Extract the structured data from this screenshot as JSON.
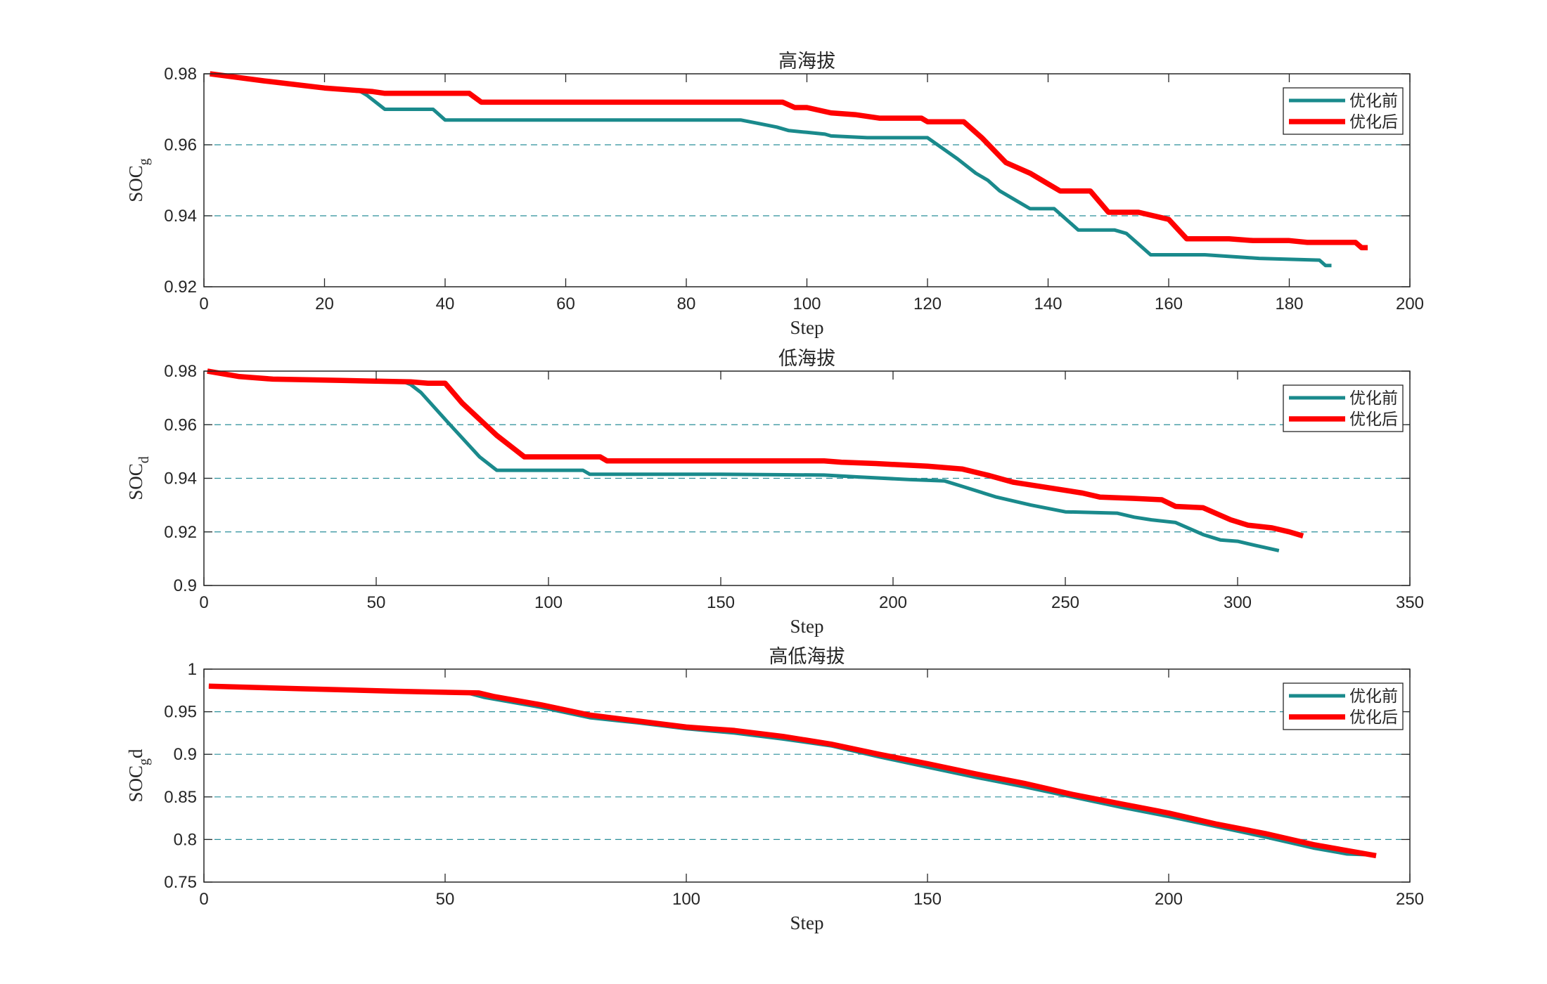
{
  "chart_data": [
    {
      "type": "line",
      "title": "高海拔",
      "xlabel": "Step",
      "ylabel": "SOC",
      "ylabel_sub": "g",
      "xlim": [
        0,
        200
      ],
      "ylim": [
        0.92,
        0.98
      ],
      "xticks": [
        0,
        20,
        40,
        60,
        80,
        100,
        120,
        140,
        160,
        180,
        200
      ],
      "yticks": [
        0.92,
        0.94,
        0.96,
        0.98
      ],
      "xtick_labels": [
        "0",
        "20",
        "40",
        "60",
        "80",
        "100",
        "120",
        "140",
        "160",
        "180",
        "200"
      ],
      "ytick_labels": [
        "0.92",
        "0.94",
        "0.96",
        "0.98"
      ],
      "grid": "horizontal-dashed",
      "legend_position": "top-right",
      "series": [
        {
          "name": "优化前",
          "color": "#1a8a8c",
          "points": [
            [
              1,
              0.98
            ],
            [
              10,
              0.978
            ],
            [
              20,
              0.976
            ],
            [
              26,
              0.975
            ],
            [
              27,
              0.974
            ],
            [
              30,
              0.97
            ],
            [
              38,
              0.97
            ],
            [
              40,
              0.967
            ],
            [
              50,
              0.967
            ],
            [
              70,
              0.967
            ],
            [
              89,
              0.967
            ],
            [
              92,
              0.966
            ],
            [
              95,
              0.965
            ],
            [
              97,
              0.964
            ],
            [
              100,
              0.9635
            ],
            [
              103,
              0.963
            ],
            [
              104,
              0.9625
            ],
            [
              110,
              0.962
            ],
            [
              120,
              0.962
            ],
            [
              125,
              0.956
            ],
            [
              128,
              0.952
            ],
            [
              130,
              0.95
            ],
            [
              132,
              0.947
            ],
            [
              135,
              0.944
            ],
            [
              137,
              0.942
            ],
            [
              141,
              0.942
            ],
            [
              145,
              0.936
            ],
            [
              151,
              0.936
            ],
            [
              153,
              0.935
            ],
            [
              157,
              0.929
            ],
            [
              166,
              0.929
            ],
            [
              175,
              0.928
            ],
            [
              185,
              0.9275
            ],
            [
              186,
              0.926
            ],
            [
              187,
              0.926
            ]
          ]
        },
        {
          "name": "优化后",
          "color": "#ff0000",
          "points": [
            [
              1,
              0.98
            ],
            [
              10,
              0.978
            ],
            [
              20,
              0.976
            ],
            [
              28,
              0.975
            ],
            [
              30,
              0.9745
            ],
            [
              38,
              0.9745
            ],
            [
              44,
              0.9745
            ],
            [
              46,
              0.972
            ],
            [
              60,
              0.972
            ],
            [
              80,
              0.972
            ],
            [
              96,
              0.972
            ],
            [
              98,
              0.9705
            ],
            [
              100,
              0.9705
            ],
            [
              104,
              0.969
            ],
            [
              108,
              0.9685
            ],
            [
              112,
              0.9675
            ],
            [
              119,
              0.9675
            ],
            [
              120,
              0.9665
            ],
            [
              126,
              0.9665
            ],
            [
              129,
              0.962
            ],
            [
              133,
              0.955
            ],
            [
              137,
              0.952
            ],
            [
              140,
              0.949
            ],
            [
              142,
              0.947
            ],
            [
              147,
              0.947
            ],
            [
              150,
              0.941
            ],
            [
              155,
              0.941
            ],
            [
              160,
              0.939
            ],
            [
              163,
              0.9335
            ],
            [
              170,
              0.9335
            ],
            [
              174,
              0.933
            ],
            [
              180,
              0.933
            ],
            [
              183,
              0.9325
            ],
            [
              191,
              0.9325
            ],
            [
              192,
              0.931
            ],
            [
              193,
              0.931
            ]
          ]
        }
      ]
    },
    {
      "type": "line",
      "title": "低海拔",
      "xlabel": "Step",
      "ylabel": "SOC",
      "ylabel_sub": "d",
      "xlim": [
        0,
        350
      ],
      "ylim": [
        0.9,
        0.98
      ],
      "xticks": [
        0,
        50,
        100,
        150,
        200,
        250,
        300,
        350
      ],
      "yticks": [
        0.9,
        0.92,
        0.94,
        0.96,
        0.98
      ],
      "xtick_labels": [
        "0",
        "50",
        "100",
        "150",
        "200",
        "250",
        "300",
        "350"
      ],
      "ytick_labels": [
        "0.9",
        "0.92",
        "0.94",
        "0.96",
        "0.98"
      ],
      "grid": "horizontal-dashed",
      "legend_position": "top-right",
      "series": [
        {
          "name": "优化前",
          "color": "#1a8a8c",
          "points": [
            [
              1,
              0.98
            ],
            [
              10,
              0.978
            ],
            [
              20,
              0.977
            ],
            [
              40,
              0.9765
            ],
            [
              58,
              0.976
            ],
            [
              60,
              0.975
            ],
            [
              63,
              0.972
            ],
            [
              70,
              0.962
            ],
            [
              80,
              0.948
            ],
            [
              85,
              0.943
            ],
            [
              100,
              0.943
            ],
            [
              110,
              0.943
            ],
            [
              112,
              0.9415
            ],
            [
              150,
              0.9415
            ],
            [
              180,
              0.9412
            ],
            [
              190,
              0.9405
            ],
            [
              205,
              0.9395
            ],
            [
              215,
              0.939
            ],
            [
              220,
              0.937
            ],
            [
              230,
              0.933
            ],
            [
              240,
              0.93
            ],
            [
              250,
              0.9275
            ],
            [
              265,
              0.927
            ],
            [
              270,
              0.9255
            ],
            [
              275,
              0.9245
            ],
            [
              282,
              0.9235
            ],
            [
              290,
              0.919
            ],
            [
              295,
              0.917
            ],
            [
              300,
              0.9165
            ],
            [
              305,
              0.915
            ],
            [
              312,
              0.913
            ]
          ]
        },
        {
          "name": "优化后",
          "color": "#ff0000",
          "points": [
            [
              1,
              0.98
            ],
            [
              10,
              0.978
            ],
            [
              20,
              0.977
            ],
            [
              40,
              0.9765
            ],
            [
              60,
              0.976
            ],
            [
              65,
              0.9755
            ],
            [
              70,
              0.9755
            ],
            [
              75,
              0.968
            ],
            [
              80,
              0.962
            ],
            [
              85,
              0.956
            ],
            [
              90,
              0.951
            ],
            [
              93,
              0.948
            ],
            [
              115,
              0.948
            ],
            [
              117,
              0.9465
            ],
            [
              150,
              0.9465
            ],
            [
              180,
              0.9465
            ],
            [
              185,
              0.946
            ],
            [
              195,
              0.9455
            ],
            [
              210,
              0.9445
            ],
            [
              220,
              0.9435
            ],
            [
              228,
              0.941
            ],
            [
              235,
              0.9385
            ],
            [
              245,
              0.9365
            ],
            [
              255,
              0.9345
            ],
            [
              260,
              0.933
            ],
            [
              270,
              0.9325
            ],
            [
              278,
              0.932
            ],
            [
              282,
              0.9295
            ],
            [
              290,
              0.929
            ],
            [
              298,
              0.9245
            ],
            [
              303,
              0.9225
            ],
            [
              310,
              0.9215
            ],
            [
              315,
              0.92
            ],
            [
              319,
              0.9185
            ]
          ]
        }
      ]
    },
    {
      "type": "line",
      "title": "高低海拔",
      "xlabel": "Step",
      "ylabel": "SOC",
      "ylabel_sub": "g",
      "ylabel_suffix": "d",
      "xlim": [
        0,
        250
      ],
      "ylim": [
        0.75,
        1.0
      ],
      "xticks": [
        0,
        50,
        100,
        150,
        200,
        250
      ],
      "yticks": [
        0.75,
        0.8,
        0.85,
        0.9,
        0.95,
        1.0
      ],
      "xtick_labels": [
        "0",
        "50",
        "100",
        "150",
        "200",
        "250"
      ],
      "ytick_labels": [
        "0.75",
        "0.8",
        "0.85",
        "0.9",
        "0.95",
        "1"
      ],
      "grid": "horizontal-dashed",
      "legend_position": "top-right",
      "series": [
        {
          "name": "优化前",
          "color": "#1a8a8c",
          "points": [
            [
              1,
              0.98
            ],
            [
              20,
              0.977
            ],
            [
              40,
              0.974
            ],
            [
              54,
              0.973
            ],
            [
              58,
              0.967
            ],
            [
              70,
              0.955
            ],
            [
              80,
              0.943
            ],
            [
              90,
              0.937
            ],
            [
              100,
              0.93
            ],
            [
              110,
              0.925
            ],
            [
              120,
              0.918
            ],
            [
              130,
              0.91
            ],
            [
              140,
              0.897
            ],
            [
              150,
              0.885
            ],
            [
              160,
              0.873
            ],
            [
              170,
              0.862
            ],
            [
              180,
              0.85
            ],
            [
              190,
              0.838
            ],
            [
              200,
              0.827
            ],
            [
              210,
              0.815
            ],
            [
              220,
              0.803
            ],
            [
              230,
              0.79
            ],
            [
              237,
              0.783
            ],
            [
              242,
              0.782
            ]
          ]
        },
        {
          "name": "优化后",
          "color": "#ff0000",
          "points": [
            [
              1,
              0.98
            ],
            [
              20,
              0.977
            ],
            [
              40,
              0.974
            ],
            [
              57,
              0.972
            ],
            [
              60,
              0.968
            ],
            [
              70,
              0.958
            ],
            [
              80,
              0.946
            ],
            [
              90,
              0.939
            ],
            [
              100,
              0.932
            ],
            [
              110,
              0.928
            ],
            [
              120,
              0.921
            ],
            [
              130,
              0.912
            ],
            [
              140,
              0.9
            ],
            [
              150,
              0.889
            ],
            [
              160,
              0.877
            ],
            [
              170,
              0.866
            ],
            [
              180,
              0.853
            ],
            [
              190,
              0.842
            ],
            [
              200,
              0.831
            ],
            [
              210,
              0.818
            ],
            [
              220,
              0.807
            ],
            [
              230,
              0.794
            ],
            [
              240,
              0.784
            ],
            [
              243,
              0.781
            ]
          ]
        }
      ]
    }
  ]
}
